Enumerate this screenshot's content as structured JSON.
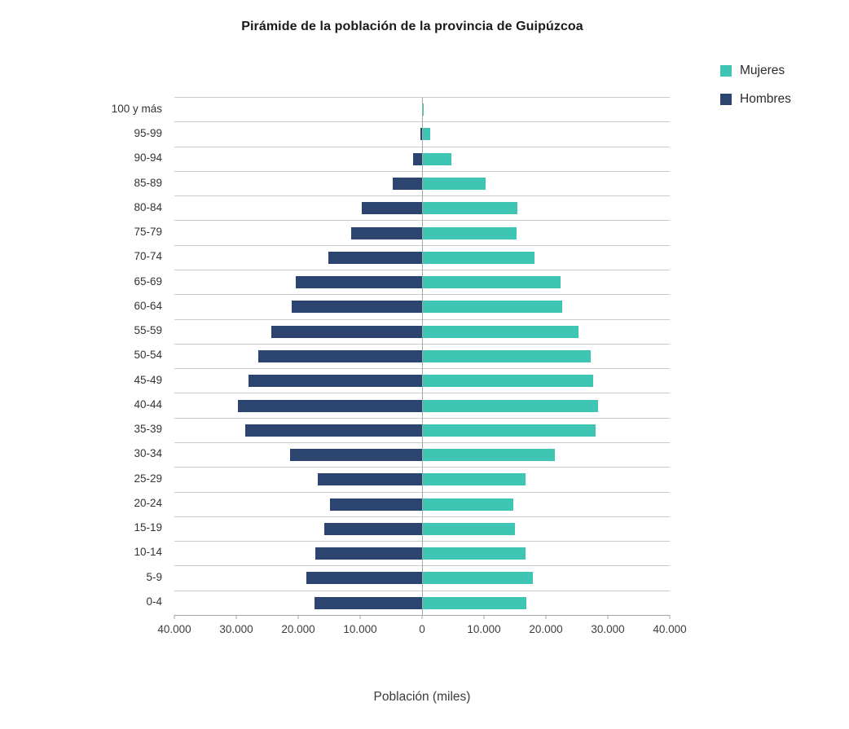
{
  "chart_data": {
    "type": "bar",
    "subtype": "population_pyramid",
    "title": "Pirámide de la población de la provincia de Guipúzcoa",
    "xlabel": "Población (miles)",
    "ylabel": "",
    "grid": "horizontal",
    "legend_position": "top-right",
    "axis_max_per_side": 40000,
    "x_tick_labels": [
      "40.000",
      "30.000",
      "20.000",
      "10.000",
      "0",
      "10.000",
      "20.000",
      "30.000",
      "40.000"
    ],
    "categories": [
      "100 y más",
      "95-99",
      "90-94",
      "85-89",
      "80-84",
      "75-79",
      "70-74",
      "65-69",
      "60-64",
      "55-59",
      "50-54",
      "45-49",
      "40-44",
      "35-39",
      "30-34",
      "25-29",
      "20-24",
      "15-19",
      "10-14",
      "5-9",
      "0-4"
    ],
    "series": [
      {
        "name": "Mujeres",
        "side": "right",
        "color": "#3FC5B4",
        "values": [
          300,
          1300,
          4800,
          10200,
          15400,
          15200,
          18100,
          22400,
          22600,
          25300,
          27300,
          27600,
          28400,
          28000,
          21400,
          16700,
          14700,
          15000,
          16700,
          17900,
          16800
        ]
      },
      {
        "name": "Hombres",
        "side": "left",
        "color": "#2C4470",
        "values": [
          0,
          300,
          1500,
          4800,
          9800,
          11400,
          15100,
          20400,
          21000,
          24300,
          26400,
          28000,
          29700,
          28500,
          21300,
          16900,
          14900,
          15800,
          17300,
          18700,
          17400
        ]
      }
    ],
    "colors": {
      "mujeres": "#3FC5B4",
      "hombres": "#2C4470",
      "gridline": "#C9C9C9",
      "axis": "#A6A6A6",
      "tick_text": "#3D3D3D",
      "title_text": "#1A1A1A"
    }
  }
}
